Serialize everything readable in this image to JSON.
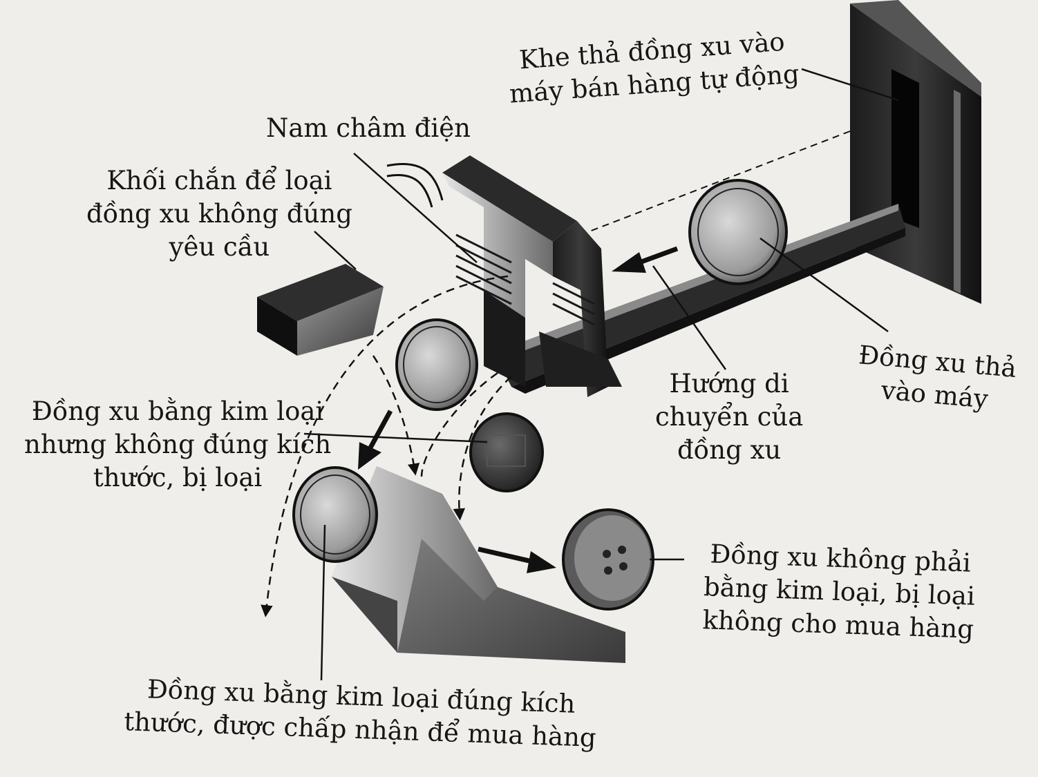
{
  "labels": {
    "slot": [
      "Khe thả đồng xu vào",
      "máy bán hàng tự động"
    ],
    "magnet": [
      "Nam châm điện"
    ],
    "block": [
      "Khối chắn để loại",
      "đồng xu không đúng",
      "yêu cầu"
    ],
    "wrong_size": [
      "Đồng xu bằng kim loại",
      "nhưng không đúng kích",
      "thước, bị loại"
    ],
    "direction": [
      "Hướng di",
      "chuyển của",
      "đồng xu"
    ],
    "inserted": [
      "Đồng xu thả",
      "vào máy"
    ],
    "non_metal": [
      "Đồng xu không phải",
      "bằng kim loại, bị loại",
      "không cho mua hàng"
    ],
    "accepted": [
      "Đồng xu bằng kim loại đúng kích",
      "thước, được chấp nhận để mua hàng"
    ]
  }
}
